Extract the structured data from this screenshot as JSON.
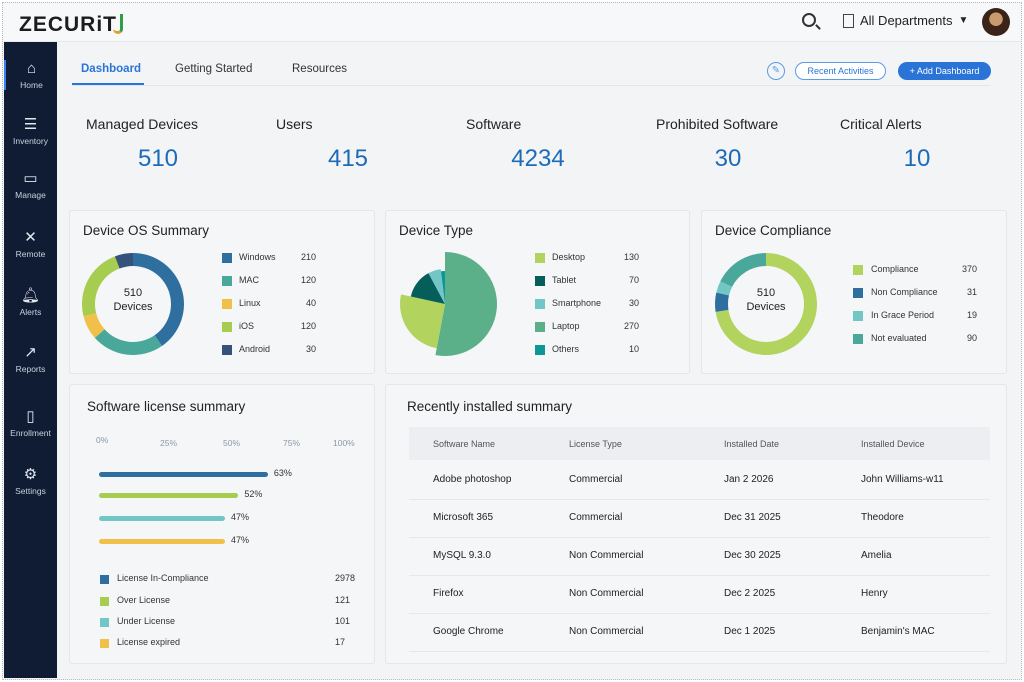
{
  "app": {
    "logo": "ZECURiT"
  },
  "topbar": {
    "department": "All Departments"
  },
  "sidebar": {
    "items": [
      {
        "label": "Home",
        "icon": "home-icon"
      },
      {
        "label": "Inventory",
        "icon": "list-icon"
      },
      {
        "label": "Manage",
        "icon": "monitor-icon"
      },
      {
        "label": "Remote",
        "icon": "tools-icon"
      },
      {
        "label": "Alerts",
        "icon": "bell-icon"
      },
      {
        "label": "Reports",
        "icon": "chart-icon"
      },
      {
        "label": "Enrollment",
        "icon": "document-icon"
      },
      {
        "label": "Settings",
        "icon": "gear-icon"
      }
    ]
  },
  "tabs": [
    {
      "label": "Dashboard",
      "active": true
    },
    {
      "label": "Getting Started"
    },
    {
      "label": "Resources"
    }
  ],
  "actions": {
    "recent": "Recent Activities",
    "add": "+ Add Dashboard"
  },
  "stats": [
    {
      "label": "Managed Devices",
      "value": "510"
    },
    {
      "label": "Users",
      "value": "415"
    },
    {
      "label": "Software",
      "value": "4234"
    },
    {
      "label": "Prohibited Software",
      "value": "30"
    },
    {
      "label": "Critical Alerts",
      "value": "10"
    }
  ],
  "chart_data": [
    {
      "type": "donut",
      "title": "Device OS Summary",
      "center": [
        "510",
        "Devices"
      ],
      "categories": [
        "Windows",
        "MAC",
        "Linux",
        "iOS",
        "Android"
      ],
      "values": [
        210,
        120,
        40,
        120,
        30
      ],
      "colors": [
        "#2e6fa0",
        "#4aa89a",
        "#f0c04a",
        "#a6cc50",
        "#34527a"
      ]
    },
    {
      "type": "pie",
      "title": "Device Type",
      "categories": [
        "Desktop",
        "Tablet",
        "Smartphone",
        "Laptop",
        "Others"
      ],
      "values": [
        130,
        70,
        30,
        270,
        10
      ],
      "colors": [
        "#b2d35e",
        "#065e5a",
        "#72c6c6",
        "#5bb08a",
        "#0d9696"
      ]
    },
    {
      "type": "donut",
      "title": "Device Compliance",
      "center": [
        "510",
        "Devices"
      ],
      "categories": [
        "Compliance",
        "Non Compliance",
        "In Grace Period",
        "Not evaluated"
      ],
      "values": [
        370,
        31,
        19,
        90
      ],
      "colors": [
        "#b2d35e",
        "#2e6fa0",
        "#72c6c6",
        "#4aa89a"
      ]
    },
    {
      "type": "bar",
      "title": "Software license summary",
      "orientation": "horizontal",
      "xticks": [
        "0%",
        "25%",
        "50%",
        "75%",
        "100%"
      ],
      "xlim": [
        0,
        100
      ],
      "values": [
        63,
        52,
        47,
        47
      ],
      "labels": [
        "63%",
        "52%",
        "47%",
        "47%"
      ],
      "colors": [
        "#2e6fa0",
        "#a6cc50",
        "#72c6c6",
        "#f0c04a"
      ],
      "legend": [
        {
          "label": "License In-Compliance",
          "value": "2978"
        },
        {
          "label": "Over License",
          "value": "121"
        },
        {
          "label": "Under License",
          "value": "101"
        },
        {
          "label": "License expired",
          "value": "17"
        }
      ]
    }
  ],
  "recent": {
    "title": "Recently installed summary",
    "columns": [
      "Software Name",
      "License Type",
      "Installed Date",
      "Installed Device"
    ],
    "rows": [
      [
        "Adobe photoshop",
        "Commercial",
        "Jan 2 2026",
        "John Williams-w11"
      ],
      [
        "Microsoft 365",
        "Commercial",
        "Dec 31 2025",
        "Theodore"
      ],
      [
        "MySQL 9.3.0",
        "Non Commercial",
        "Dec 30 2025",
        "Amelia"
      ],
      [
        "Firefox",
        "Non Commercial",
        "Dec 2 2025",
        "Henry"
      ],
      [
        "Google Chrome",
        "Non Commercial",
        "Dec 1 2025",
        "Benjamin's MAC"
      ]
    ]
  }
}
